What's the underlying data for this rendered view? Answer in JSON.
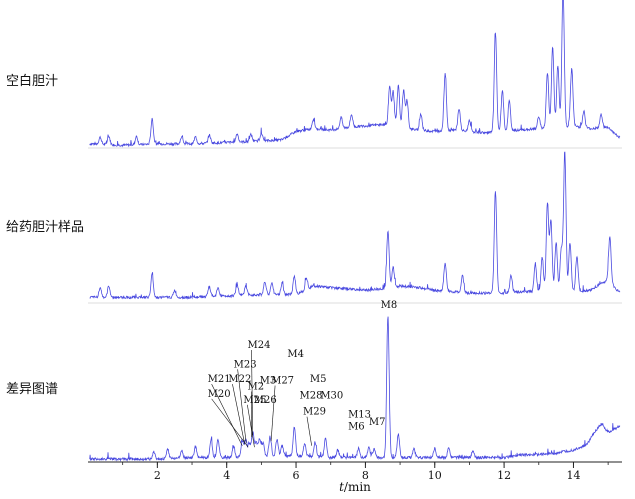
{
  "chart_data": {
    "type": "line",
    "xlabel_italic": "t",
    "xlabel_unit": "/min",
    "xlim": [
      0,
      15.4
    ],
    "x_ticks": [
      2,
      4,
      6,
      8,
      10,
      12,
      14
    ],
    "x_tick_labels": [
      "2",
      "4",
      "6",
      "8",
      "10",
      "12",
      "14"
    ],
    "line_color": "#4a4ae0",
    "axis_color": "#222222",
    "panels": [
      {
        "label": "空白胆汁",
        "baseline_points": [
          [
            0.2,
            0.03
          ],
          [
            1.0,
            0.02
          ],
          [
            2.0,
            0.03
          ],
          [
            3.0,
            0.03
          ],
          [
            4.0,
            0.04
          ],
          [
            5.0,
            0.05
          ],
          [
            5.6,
            0.06
          ],
          [
            6.0,
            0.12
          ],
          [
            6.5,
            0.14
          ],
          [
            7.0,
            0.13
          ],
          [
            7.5,
            0.15
          ],
          [
            8.0,
            0.16
          ],
          [
            8.5,
            0.17
          ],
          [
            9.0,
            0.15
          ],
          [
            9.5,
            0.13
          ],
          [
            10.0,
            0.12
          ],
          [
            10.5,
            0.13
          ],
          [
            11.0,
            0.12
          ],
          [
            11.5,
            0.11
          ],
          [
            12.0,
            0.12
          ],
          [
            12.5,
            0.13
          ],
          [
            13.0,
            0.14
          ],
          [
            13.5,
            0.15
          ],
          [
            14.0,
            0.16
          ],
          [
            14.5,
            0.14
          ],
          [
            15.0,
            0.15
          ],
          [
            15.3,
            0.08
          ]
        ],
        "peaks": [
          [
            0.35,
            0.05
          ],
          [
            0.6,
            0.06
          ],
          [
            1.4,
            0.06
          ],
          [
            1.85,
            0.18
          ],
          [
            2.7,
            0.05
          ],
          [
            3.1,
            0.05
          ],
          [
            3.5,
            0.06
          ],
          [
            4.3,
            0.06
          ],
          [
            4.7,
            0.05
          ],
          [
            5.0,
            0.06
          ],
          [
            6.5,
            0.07
          ],
          [
            7.3,
            0.08
          ],
          [
            7.6,
            0.09
          ],
          [
            8.7,
            0.28
          ],
          [
            8.8,
            0.24
          ],
          [
            8.95,
            0.3
          ],
          [
            9.1,
            0.27
          ],
          [
            9.2,
            0.2
          ],
          [
            9.6,
            0.12
          ],
          [
            10.3,
            0.42
          ],
          [
            10.7,
            0.16
          ],
          [
            11.0,
            0.08
          ],
          [
            11.75,
            0.72
          ],
          [
            11.95,
            0.3
          ],
          [
            12.15,
            0.22
          ],
          [
            13.0,
            0.09
          ],
          [
            13.25,
            0.4
          ],
          [
            13.4,
            0.58
          ],
          [
            13.55,
            0.45
          ],
          [
            13.7,
            0.98
          ],
          [
            13.95,
            0.42
          ],
          [
            14.3,
            0.12
          ],
          [
            14.8,
            0.1
          ]
        ]
      },
      {
        "label": "给药胆汁样品",
        "baseline_points": [
          [
            0.2,
            0.04
          ],
          [
            1.0,
            0.04
          ],
          [
            2.0,
            0.04
          ],
          [
            3.0,
            0.04
          ],
          [
            4.0,
            0.05
          ],
          [
            5.0,
            0.06
          ],
          [
            6.0,
            0.06
          ],
          [
            6.5,
            0.12
          ],
          [
            7.0,
            0.11
          ],
          [
            7.5,
            0.1
          ],
          [
            8.0,
            0.09
          ],
          [
            8.5,
            0.1
          ],
          [
            9.0,
            0.12
          ],
          [
            9.5,
            0.11
          ],
          [
            10.0,
            0.09
          ],
          [
            10.5,
            0.08
          ],
          [
            11.0,
            0.07
          ],
          [
            11.5,
            0.07
          ],
          [
            12.0,
            0.07
          ],
          [
            12.5,
            0.08
          ],
          [
            13.0,
            0.08
          ],
          [
            13.5,
            0.08
          ],
          [
            14.0,
            0.08
          ],
          [
            14.5,
            0.09
          ],
          [
            14.8,
            0.14
          ],
          [
            15.0,
            0.16
          ],
          [
            15.3,
            0.08
          ]
        ],
        "peaks": [
          [
            0.35,
            0.07
          ],
          [
            0.6,
            0.08
          ],
          [
            1.85,
            0.16
          ],
          [
            2.5,
            0.05
          ],
          [
            3.5,
            0.07
          ],
          [
            3.75,
            0.06
          ],
          [
            4.3,
            0.07
          ],
          [
            4.55,
            0.06
          ],
          [
            5.1,
            0.09
          ],
          [
            5.3,
            0.08
          ],
          [
            5.6,
            0.08
          ],
          [
            5.95,
            0.13
          ],
          [
            6.3,
            0.08
          ],
          [
            8.65,
            0.4
          ],
          [
            8.8,
            0.14
          ],
          [
            10.3,
            0.2
          ],
          [
            10.8,
            0.12
          ],
          [
            11.75,
            0.72
          ],
          [
            12.2,
            0.12
          ],
          [
            12.9,
            0.2
          ],
          [
            13.1,
            0.24
          ],
          [
            13.25,
            0.62
          ],
          [
            13.35,
            0.5
          ],
          [
            13.5,
            0.35
          ],
          [
            13.65,
            0.3
          ],
          [
            13.75,
            0.98
          ],
          [
            13.9,
            0.35
          ],
          [
            14.1,
            0.25
          ],
          [
            15.05,
            0.32
          ]
        ]
      },
      {
        "label": "差异图谱",
        "baseline_points": [
          [
            0.2,
            0.02
          ],
          [
            1.0,
            0.02
          ],
          [
            2.0,
            0.02
          ],
          [
            3.0,
            0.03
          ],
          [
            4.0,
            0.03
          ],
          [
            5.0,
            0.04
          ],
          [
            6.0,
            0.04
          ],
          [
            7.0,
            0.03
          ],
          [
            8.0,
            0.03
          ],
          [
            9.0,
            0.03
          ],
          [
            10.0,
            0.03
          ],
          [
            11.0,
            0.03
          ],
          [
            12.0,
            0.03
          ],
          [
            12.5,
            0.05
          ],
          [
            13.0,
            0.05
          ],
          [
            13.5,
            0.06
          ],
          [
            14.0,
            0.08
          ],
          [
            14.4,
            0.12
          ],
          [
            14.6,
            0.2
          ],
          [
            14.8,
            0.26
          ],
          [
            15.0,
            0.2
          ],
          [
            15.3,
            0.24
          ]
        ],
        "peaks": [
          [
            1.9,
            0.05
          ],
          [
            2.3,
            0.06
          ],
          [
            2.7,
            0.05
          ],
          [
            3.1,
            0.07
          ],
          [
            3.55,
            0.12
          ],
          [
            3.75,
            0.12
          ],
          [
            4.2,
            0.07
          ],
          [
            4.45,
            0.1
          ],
          [
            4.55,
            0.12
          ],
          [
            4.65,
            0.09
          ],
          [
            4.75,
            0.17
          ],
          [
            4.85,
            0.1
          ],
          [
            4.95,
            0.12
          ],
          [
            5.05,
            0.09
          ],
          [
            5.25,
            0.13
          ],
          [
            5.45,
            0.11
          ],
          [
            5.6,
            0.07
          ],
          [
            5.95,
            0.2
          ],
          [
            6.25,
            0.09
          ],
          [
            6.55,
            0.1
          ],
          [
            6.85,
            0.13
          ],
          [
            7.2,
            0.05
          ],
          [
            7.8,
            0.06
          ],
          [
            8.1,
            0.07
          ],
          [
            8.25,
            0.06
          ],
          [
            8.65,
            0.96
          ],
          [
            8.95,
            0.16
          ],
          [
            9.4,
            0.06
          ],
          [
            10.0,
            0.06
          ],
          [
            10.4,
            0.06
          ],
          [
            11.1,
            0.05
          ]
        ]
      }
    ],
    "annotations": [
      {
        "text": "M8",
        "x": 8.68,
        "y": 1.04,
        "anchor": "middle",
        "line_to": null
      },
      {
        "text": "M24",
        "x": 4.6,
        "y": 0.77,
        "anchor": "start",
        "line_to": [
          4.75,
          0.18
        ]
      },
      {
        "text": "M4",
        "x": 5.75,
        "y": 0.71,
        "anchor": "start",
        "line_to": null
      },
      {
        "text": "M23",
        "x": 4.2,
        "y": 0.64,
        "anchor": "start",
        "line_to": [
          4.56,
          0.13
        ]
      },
      {
        "text": "M21",
        "x": 3.45,
        "y": 0.54,
        "anchor": "start",
        "line_to": [
          4.45,
          0.11
        ]
      },
      {
        "text": "M22",
        "x": 4.05,
        "y": 0.54,
        "anchor": "start",
        "line_to": [
          4.52,
          0.12
        ]
      },
      {
        "text": "M5",
        "x": 6.4,
        "y": 0.54,
        "anchor": "start",
        "line_to": null
      },
      {
        "text": "M3",
        "x": 4.95,
        "y": 0.53,
        "anchor": "start",
        "line_to": null
      },
      {
        "text": "M27",
        "x": 5.28,
        "y": 0.53,
        "anchor": "start",
        "line_to": [
          5.28,
          0.14
        ]
      },
      {
        "text": "M2",
        "x": 4.6,
        "y": 0.49,
        "anchor": "start",
        "line_to": [
          4.72,
          0.17
        ]
      },
      {
        "text": "M20",
        "x": 3.45,
        "y": 0.44,
        "anchor": "start",
        "line_to": [
          4.62,
          0.1
        ]
      },
      {
        "text": "M28",
        "x": 6.1,
        "y": 0.43,
        "anchor": "start",
        "line_to": null
      },
      {
        "text": "M30",
        "x": 6.7,
        "y": 0.43,
        "anchor": "start",
        "line_to": null
      },
      {
        "text": "M25",
        "x": 4.48,
        "y": 0.4,
        "anchor": "start",
        "line_to": [
          4.8,
          0.1
        ]
      },
      {
        "text": "M26",
        "x": 4.78,
        "y": 0.4,
        "anchor": "start",
        "line_to": null
      },
      {
        "text": "M29",
        "x": 6.2,
        "y": 0.32,
        "anchor": "start",
        "line_to": [
          6.45,
          0.11
        ]
      },
      {
        "text": "M13",
        "x": 7.5,
        "y": 0.3,
        "anchor": "start",
        "line_to": null
      },
      {
        "text": "M7",
        "x": 8.1,
        "y": 0.25,
        "anchor": "start",
        "line_to": null
      },
      {
        "text": "M6",
        "x": 7.5,
        "y": 0.22,
        "anchor": "start",
        "line_to": null
      }
    ]
  }
}
